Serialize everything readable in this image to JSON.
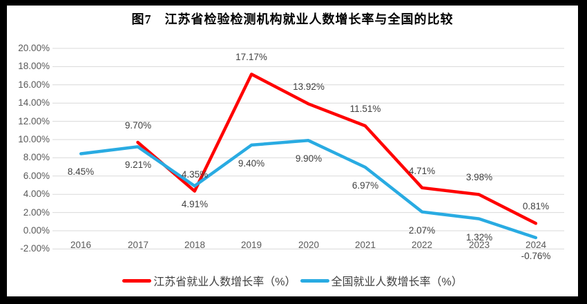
{
  "title": "图7　江苏省检验检测机构就业人数增长率与全国的比较",
  "chart_data": {
    "type": "line",
    "title": "图7　江苏省检验检测机构就业人数增长率与全国的比较",
    "categories": [
      "2016",
      "2017",
      "2018",
      "2019",
      "2020",
      "2021",
      "2022",
      "2023",
      "2024"
    ],
    "series": [
      {
        "name": "江苏省就业人数增长率（%）",
        "color": "#FF0000",
        "values": [
          null,
          9.7,
          4.35,
          17.17,
          13.92,
          11.51,
          4.71,
          3.98,
          0.81
        ],
        "data_labels": [
          "",
          "9.70%",
          "4.35%",
          "17.17%",
          "13.92%",
          "11.51%",
          "4.71%",
          "3.98%",
          "0.81%"
        ],
        "label_position": "above"
      },
      {
        "name": "全国就业人数增长率（%）",
        "color": "#29ABE2",
        "values": [
          8.45,
          9.21,
          4.91,
          9.4,
          9.9,
          6.97,
          2.07,
          1.32,
          -0.76
        ],
        "data_labels": [
          "8.45%",
          "9.21%",
          "4.91%",
          "9.40%",
          "9.90%",
          "6.97%",
          "2.07%",
          "1.32%",
          "-0.76%"
        ],
        "label_position": "below"
      }
    ],
    "y_axis": {
      "min": -2,
      "max": 20,
      "step": 2,
      "tick_labels": [
        "20.00%",
        "18.00%",
        "16.00%",
        "14.00%",
        "12.00%",
        "10.00%",
        "8.00%",
        "6.00%",
        "4.00%",
        "2.00%",
        "0.00%",
        "-2.00%"
      ]
    },
    "x_axis": {
      "labels": [
        "2016",
        "2017",
        "2018",
        "2019",
        "2020",
        "2021",
        "2022",
        "2023",
        "2024"
      ]
    },
    "grid": true,
    "legend_position": "bottom"
  },
  "colors": {
    "jiangsu_line": "#FF0000",
    "national_line": "#29ABE2",
    "gridline": "#D9D9D9",
    "axis_text": "#595959",
    "data_label_text": "#404040",
    "frame": "#000000",
    "background": "#FFFFFF"
  }
}
